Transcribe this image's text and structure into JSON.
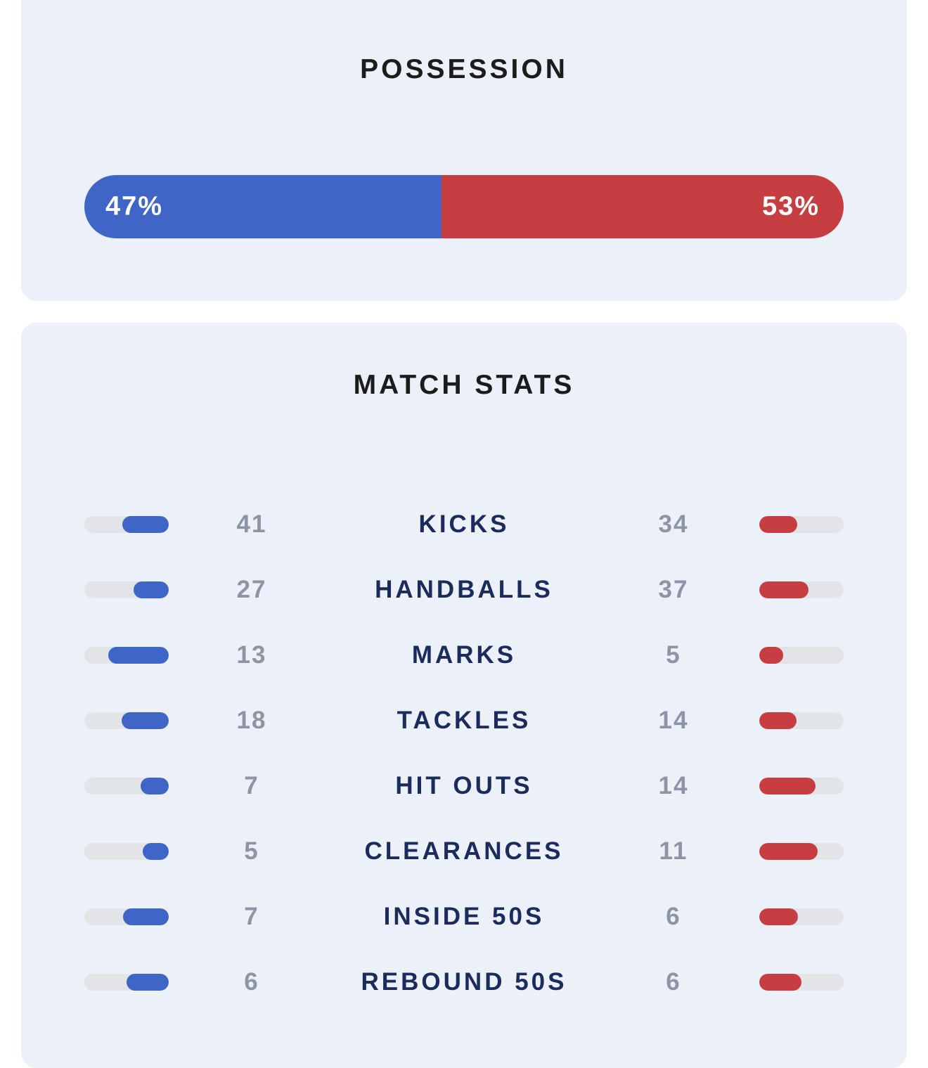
{
  "colors": {
    "home": "#3f66c6",
    "away": "#c63e42",
    "track": "#e3e4e8"
  },
  "possession": {
    "title": "POSSESSION",
    "home_pct": 47,
    "away_pct": 53,
    "home_label": "47%",
    "away_label": "53%"
  },
  "match_stats": {
    "title": "MATCH STATS",
    "rows": [
      {
        "label": "KICKS",
        "home": "41",
        "away": "34",
        "home_fill": 0.55,
        "away_fill": 0.45
      },
      {
        "label": "HANDBALLS",
        "home": "27",
        "away": "37",
        "home_fill": 0.42,
        "away_fill": 0.58
      },
      {
        "label": "MARKS",
        "home": "13",
        "away": "5",
        "home_fill": 0.72,
        "away_fill": 0.28
      },
      {
        "label": "TACKLES",
        "home": "18",
        "away": "14",
        "home_fill": 0.56,
        "away_fill": 0.44
      },
      {
        "label": "HIT OUTS",
        "home": "7",
        "away": "14",
        "home_fill": 0.33,
        "away_fill": 0.67
      },
      {
        "label": "CLEARANCES",
        "home": "5",
        "away": "11",
        "home_fill": 0.31,
        "away_fill": 0.69
      },
      {
        "label": "INSIDE 50S",
        "home": "7",
        "away": "6",
        "home_fill": 0.54,
        "away_fill": 0.46
      },
      {
        "label": "REBOUND 50S",
        "home": "6",
        "away": "6",
        "home_fill": 0.5,
        "away_fill": 0.5
      }
    ]
  }
}
